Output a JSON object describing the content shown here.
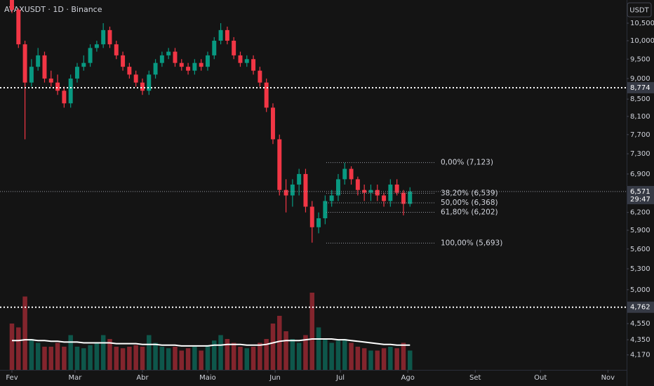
{
  "chart_data": {
    "type": "candlestick",
    "title": "AVAXUSDT · 1D · Binance",
    "currency": "USDT",
    "log_scale": true,
    "up_color": "#089981",
    "down_color": "#f23645",
    "x": [
      0,
      3,
      6,
      9,
      12,
      15,
      18,
      21,
      24,
      27,
      30,
      33,
      36,
      39,
      42,
      45,
      48,
      51,
      54,
      57,
      60,
      63,
      66,
      69,
      72,
      75,
      78,
      81,
      84,
      87,
      90,
      93,
      96,
      99,
      102,
      105,
      108,
      111,
      114,
      117,
      120,
      123,
      126,
      129,
      132,
      135,
      138,
      141,
      144,
      147,
      150,
      153,
      156,
      159,
      162,
      165,
      168,
      171,
      174,
      177,
      180,
      183
    ],
    "open": [
      11.2,
      10.9,
      9.9,
      8.9,
      9.3,
      9.6,
      9.0,
      8.9,
      8.7,
      8.4,
      9.0,
      9.3,
      9.4,
      9.8,
      9.9,
      10.3,
      9.9,
      9.6,
      9.3,
      9.1,
      8.9,
      8.7,
      9.1,
      9.4,
      9.6,
      9.7,
      9.4,
      9.3,
      9.2,
      9.4,
      9.3,
      9.6,
      10.0,
      10.3,
      10.0,
      9.6,
      9.4,
      9.5,
      9.2,
      8.9,
      8.3,
      7.6,
      6.6,
      6.5,
      6.7,
      6.9,
      6.3,
      5.95,
      6.1,
      6.4,
      6.5,
      6.8,
      7.0,
      6.8,
      6.6,
      6.55,
      6.6,
      6.5,
      6.4,
      6.7,
      6.55,
      6.35
    ],
    "high": [
      11.2,
      10.95,
      10.0,
      9.5,
      9.8,
      9.7,
      9.2,
      9.1,
      8.8,
      9.1,
      9.4,
      9.6,
      9.9,
      10.0,
      10.5,
      10.4,
      10.0,
      9.7,
      9.4,
      9.2,
      9.0,
      9.2,
      9.5,
      9.7,
      9.8,
      9.8,
      9.5,
      9.4,
      9.5,
      9.5,
      9.7,
      10.1,
      10.5,
      10.4,
      10.1,
      9.7,
      9.6,
      9.6,
      9.3,
      9.0,
      8.4,
      7.7,
      6.8,
      6.8,
      7.0,
      7.0,
      6.4,
      6.2,
      6.5,
      6.6,
      6.9,
      7.12,
      7.05,
      6.85,
      6.7,
      6.7,
      6.7,
      6.55,
      6.8,
      6.8,
      6.6,
      6.65
    ],
    "low": [
      10.8,
      9.8,
      7.6,
      8.8,
      9.2,
      8.9,
      8.8,
      8.6,
      8.3,
      8.3,
      8.9,
      9.2,
      9.3,
      9.7,
      9.8,
      9.8,
      9.5,
      9.2,
      9.0,
      8.8,
      8.6,
      8.6,
      9.0,
      9.3,
      9.5,
      9.3,
      9.2,
      9.1,
      9.1,
      9.2,
      9.2,
      9.5,
      9.9,
      9.9,
      9.5,
      9.3,
      9.3,
      9.1,
      8.8,
      8.2,
      7.5,
      6.5,
      6.2,
      6.3,
      6.5,
      6.2,
      5.7,
      5.85,
      6.0,
      6.3,
      6.4,
      6.7,
      6.7,
      6.5,
      6.4,
      6.4,
      6.4,
      6.3,
      6.3,
      6.5,
      6.15,
      6.3
    ],
    "close": [
      10.9,
      9.9,
      8.9,
      9.3,
      9.6,
      9.0,
      8.9,
      8.7,
      8.4,
      9.0,
      9.3,
      9.4,
      9.8,
      9.9,
      10.3,
      9.9,
      9.6,
      9.3,
      9.1,
      8.9,
      8.7,
      9.1,
      9.4,
      9.6,
      9.7,
      9.4,
      9.3,
      9.2,
      9.4,
      9.3,
      9.6,
      10.0,
      10.3,
      10.0,
      9.6,
      9.4,
      9.5,
      9.2,
      8.9,
      8.3,
      7.6,
      6.6,
      6.5,
      6.7,
      6.9,
      6.3,
      5.95,
      6.1,
      6.4,
      6.5,
      6.8,
      7.0,
      6.8,
      6.6,
      6.55,
      6.6,
      6.5,
      6.4,
      6.7,
      6.55,
      6.35,
      6.57
    ],
    "volume": [
      60,
      55,
      95,
      40,
      35,
      30,
      30,
      35,
      30,
      45,
      30,
      28,
      32,
      35,
      45,
      40,
      30,
      28,
      30,
      32,
      30,
      45,
      35,
      30,
      28,
      30,
      25,
      28,
      30,
      25,
      32,
      38,
      45,
      40,
      35,
      30,
      28,
      30,
      35,
      40,
      60,
      70,
      50,
      40,
      35,
      45,
      100,
      55,
      40,
      35,
      38,
      40,
      35,
      30,
      28,
      25,
      25,
      28,
      30,
      28,
      35,
      25
    ],
    "volume_ma": [
      38,
      38,
      39,
      39,
      38,
      38,
      37,
      37,
      36,
      36,
      36,
      35,
      35,
      35,
      35,
      35,
      34,
      34,
      34,
      34,
      33,
      33,
      33,
      32,
      32,
      32,
      31,
      31,
      31,
      31,
      31,
      32,
      32,
      33,
      33,
      33,
      32,
      32,
      32,
      33,
      35,
      37,
      38,
      38,
      38,
      39,
      40,
      40,
      40,
      40,
      39,
      39,
      38,
      37,
      36,
      35,
      34,
      33,
      33,
      32,
      32,
      32
    ],
    "xlim": [
      -5.48,
      282.6
    ],
    "xticks": [
      {
        "value": 0,
        "label": "Fev"
      },
      {
        "value": 29,
        "label": "Mar"
      },
      {
        "value": 60,
        "label": "Abr"
      },
      {
        "value": 90,
        "label": "Maio"
      },
      {
        "value": 121,
        "label": "Jun"
      },
      {
        "value": 151,
        "label": "Jul"
      },
      {
        "value": 182,
        "label": "Ago"
      },
      {
        "value": 213,
        "label": "Set"
      },
      {
        "value": 243,
        "label": "Out"
      },
      {
        "value": 274,
        "label": "Nov"
      }
    ],
    "ylim": [
      4.0,
      11.2
    ],
    "yticks": [
      {
        "value": 10.5,
        "label": "10,500"
      },
      {
        "value": 10,
        "label": "10,000"
      },
      {
        "value": 9.5,
        "label": "9,500"
      },
      {
        "value": 9,
        "label": "9,000"
      },
      {
        "value": 8.5,
        "label": "8,500"
      },
      {
        "value": 8.1,
        "label": "8,100"
      },
      {
        "value": 7.7,
        "label": "7,700"
      },
      {
        "value": 7.3,
        "label": "7,300"
      },
      {
        "value": 6.9,
        "label": "6,900"
      },
      {
        "value": 6.2,
        "label": "6,200"
      },
      {
        "value": 5.9,
        "label": "5,900"
      },
      {
        "value": 5.6,
        "label": "5,600"
      },
      {
        "value": 5.3,
        "label": "5,300"
      },
      {
        "value": 5.0,
        "label": "5,000"
      },
      {
        "value": 4.55,
        "label": "4,550"
      },
      {
        "value": 4.35,
        "label": "4,350"
      },
      {
        "value": 4.17,
        "label": "4,170"
      }
    ],
    "hlines": [
      {
        "value": 8.774,
        "label": "8,774"
      },
      {
        "value": 4.762,
        "label": "4,762"
      }
    ],
    "last_price": {
      "value": 6.571,
      "label": "6,571",
      "countdown": "29:47"
    },
    "fib_levels": [
      {
        "value": 7.123,
        "label": "0,00% (7,123)"
      },
      {
        "value": 6.539,
        "label": "38,20% (6,539)"
      },
      {
        "value": 6.368,
        "label": "50,00% (6,368)"
      },
      {
        "value": 6.202,
        "label": "61,80% (6,202)"
      },
      {
        "value": 5.693,
        "label": "100,00% (5,693)"
      }
    ]
  }
}
